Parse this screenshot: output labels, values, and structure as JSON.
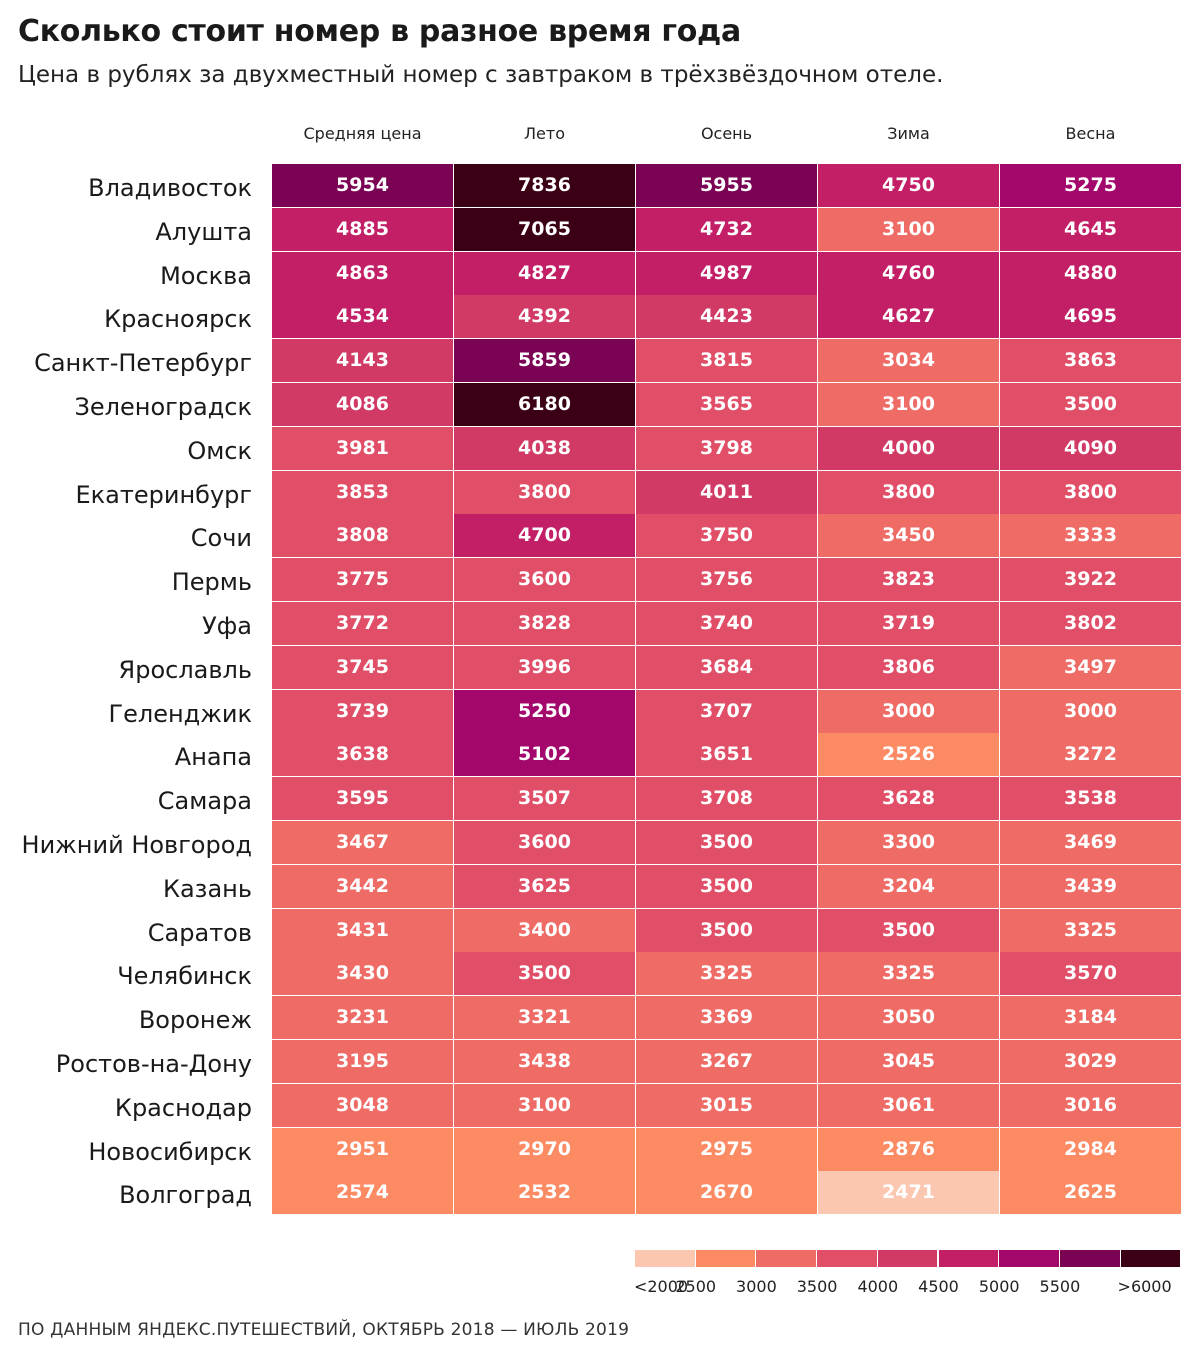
{
  "title": "Сколько стоит номер в разное время года",
  "subtitle": "Цена в рублях за двухместный номер с завтраком в трёхзвёздочном отеле.",
  "footer": "ПО ДАННЫМ ЯНДЕКС.ПУТЕШЕСТВИЙ, ОКТЯБРЬ 2018 — ИЮЛЬ 2019",
  "chart_data": {
    "type": "heatmap",
    "title": "Сколько стоит номер в разное время года",
    "subtitle": "Цена в рублях за двухместный номер с завтраком в трёхзвёздочном отеле.",
    "columns": [
      "Средняя цена",
      "Лето",
      "Осень",
      "Зима",
      "Весна"
    ],
    "rows": [
      {
        "city": "Владивосток",
        "values": [
          5954,
          7836,
          5955,
          4750,
          5275
        ]
      },
      {
        "city": "Алушта",
        "values": [
          4885,
          7065,
          4732,
          3100,
          4645
        ]
      },
      {
        "city": "Москва",
        "values": [
          4863,
          4827,
          4987,
          4760,
          4880
        ]
      },
      {
        "city": "Красноярск",
        "values": [
          4534,
          4392,
          4423,
          4627,
          4695
        ]
      },
      {
        "city": "Санкт-Петербург",
        "values": [
          4143,
          5859,
          3815,
          3034,
          3863
        ]
      },
      {
        "city": "Зеленоградск",
        "values": [
          4086,
          6180,
          3565,
          3100,
          3500
        ]
      },
      {
        "city": "Омск",
        "values": [
          3981,
          4038,
          3798,
          4000,
          4090
        ]
      },
      {
        "city": "Екатеринбург",
        "values": [
          3853,
          3800,
          4011,
          3800,
          3800
        ]
      },
      {
        "city": "Сочи",
        "values": [
          3808,
          4700,
          3750,
          3450,
          3333
        ]
      },
      {
        "city": "Пермь",
        "values": [
          3775,
          3600,
          3756,
          3823,
          3922
        ]
      },
      {
        "city": "Уфа",
        "values": [
          3772,
          3828,
          3740,
          3719,
          3802
        ]
      },
      {
        "city": "Ярославль",
        "values": [
          3745,
          3996,
          3684,
          3806,
          3497
        ]
      },
      {
        "city": "Геленджик",
        "values": [
          3739,
          5250,
          3707,
          3000,
          3000
        ]
      },
      {
        "city": "Анапа",
        "values": [
          3638,
          5102,
          3651,
          2526,
          3272
        ]
      },
      {
        "city": "Самара",
        "values": [
          3595,
          3507,
          3708,
          3628,
          3538
        ]
      },
      {
        "city": "Нижний Новгород",
        "values": [
          3467,
          3600,
          3500,
          3300,
          3469
        ]
      },
      {
        "city": "Казань",
        "values": [
          3442,
          3625,
          3500,
          3204,
          3439
        ]
      },
      {
        "city": "Саратов",
        "values": [
          3431,
          3400,
          3500,
          3500,
          3325
        ]
      },
      {
        "city": "Челябинск",
        "values": [
          3430,
          3500,
          3325,
          3325,
          3570
        ]
      },
      {
        "city": "Воронеж",
        "values": [
          3231,
          3321,
          3369,
          3050,
          3184
        ]
      },
      {
        "city": "Ростов-на-Дону",
        "values": [
          3195,
          3438,
          3267,
          3045,
          3029
        ]
      },
      {
        "city": "Краснодар",
        "values": [
          3048,
          3100,
          3015,
          3061,
          3016
        ]
      },
      {
        "city": "Новосибирск",
        "values": [
          2951,
          2970,
          2975,
          2876,
          2984
        ]
      },
      {
        "city": "Волгоград",
        "values": [
          2574,
          2532,
          2670,
          2471,
          2625
        ]
      }
    ],
    "legend": {
      "labels": [
        "<2000",
        "2500",
        "3000",
        "3500",
        "4000",
        "4500",
        "5000",
        "5500",
        ">6000"
      ],
      "thresholds": [
        2500,
        3000,
        3500,
        4000,
        4500,
        5000,
        5500,
        6000
      ],
      "colors": [
        "#fcc7b0",
        "#fc8a62",
        "#ee6b66",
        "#e04e67",
        "#d13a65",
        "#c21f66",
        "#a3076b",
        "#7a0353",
        "#3b0016"
      ]
    }
  }
}
